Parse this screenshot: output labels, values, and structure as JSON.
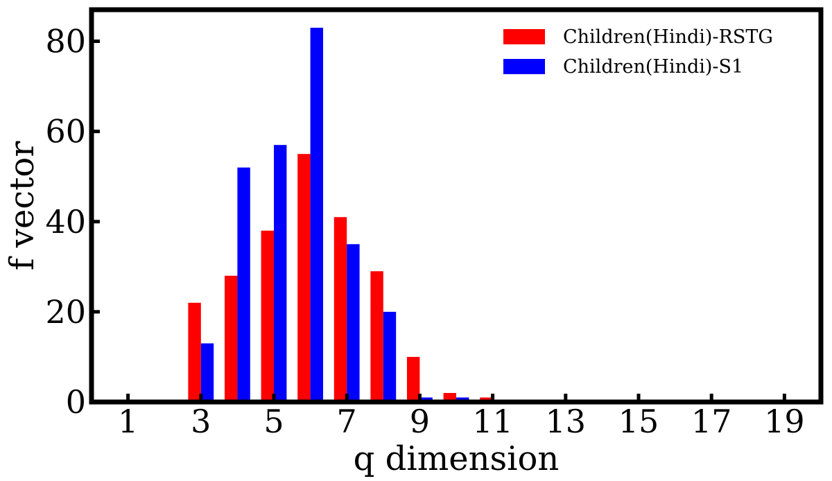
{
  "chart_data": {
    "type": "bar",
    "xlabel": "q dimension",
    "ylabel": "f vector",
    "x": [
      1,
      2,
      3,
      4,
      5,
      6,
      7,
      8,
      9,
      10,
      11,
      12,
      13,
      14,
      15,
      16,
      17,
      18,
      19
    ],
    "xticks": [
      1,
      3,
      5,
      7,
      9,
      11,
      13,
      15,
      17,
      19
    ],
    "yticks": [
      0,
      20,
      40,
      60,
      80
    ],
    "xlim": [
      0,
      20
    ],
    "ylim": [
      0,
      87
    ],
    "grid": false,
    "legend_position": "top-right",
    "series": [
      {
        "name": "Children(Hindi)-RSTG",
        "color": "#ff0000",
        "values": [
          0,
          22,
          28,
          38,
          55,
          41,
          29,
          10,
          2,
          1,
          0,
          0,
          0,
          0,
          0,
          0,
          0,
          0,
          0
        ]
      },
      {
        "name": "Children(Hindi)-S1",
        "color": "#0000ff",
        "values": [
          0,
          13,
          52,
          57,
          83,
          35,
          20,
          1,
          1,
          0,
          0,
          0,
          0,
          0,
          0,
          0,
          0,
          0,
          0
        ]
      }
    ]
  }
}
